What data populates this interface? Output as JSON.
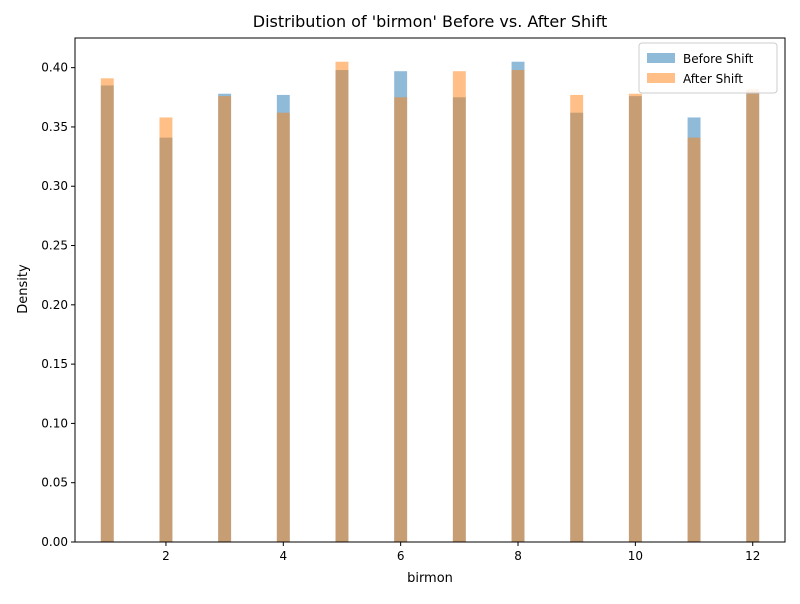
{
  "chart_data": {
    "type": "bar",
    "title": "Distribution of 'birmon' Before vs. After Shift",
    "xlabel": "birmon",
    "ylabel": "Density",
    "xlim": [
      0.45,
      12.55
    ],
    "ylim": [
      0,
      0.425
    ],
    "xticks": [
      2,
      4,
      6,
      8,
      10,
      12
    ],
    "yticks": [
      0.0,
      0.05,
      0.1,
      0.15,
      0.2,
      0.25,
      0.3,
      0.35,
      0.4
    ],
    "grid": false,
    "legend_position": "top-right",
    "bar_width": 0.22,
    "x": [
      1,
      2,
      3,
      4,
      5,
      6,
      7,
      8,
      9,
      10,
      11,
      12
    ],
    "series": [
      {
        "name": "Before Shift",
        "color": "#1f77b4",
        "alpha": 0.5,
        "values": [
          0.385,
          0.341,
          0.378,
          0.377,
          0.398,
          0.397,
          0.375,
          0.405,
          0.362,
          0.376,
          0.358,
          0.38
        ]
      },
      {
        "name": "After Shift",
        "color": "#ff7f0e",
        "alpha": 0.5,
        "values": [
          0.391,
          0.358,
          0.376,
          0.362,
          0.405,
          0.375,
          0.397,
          0.398,
          0.377,
          0.378,
          0.341,
          0.382
        ]
      }
    ]
  }
}
